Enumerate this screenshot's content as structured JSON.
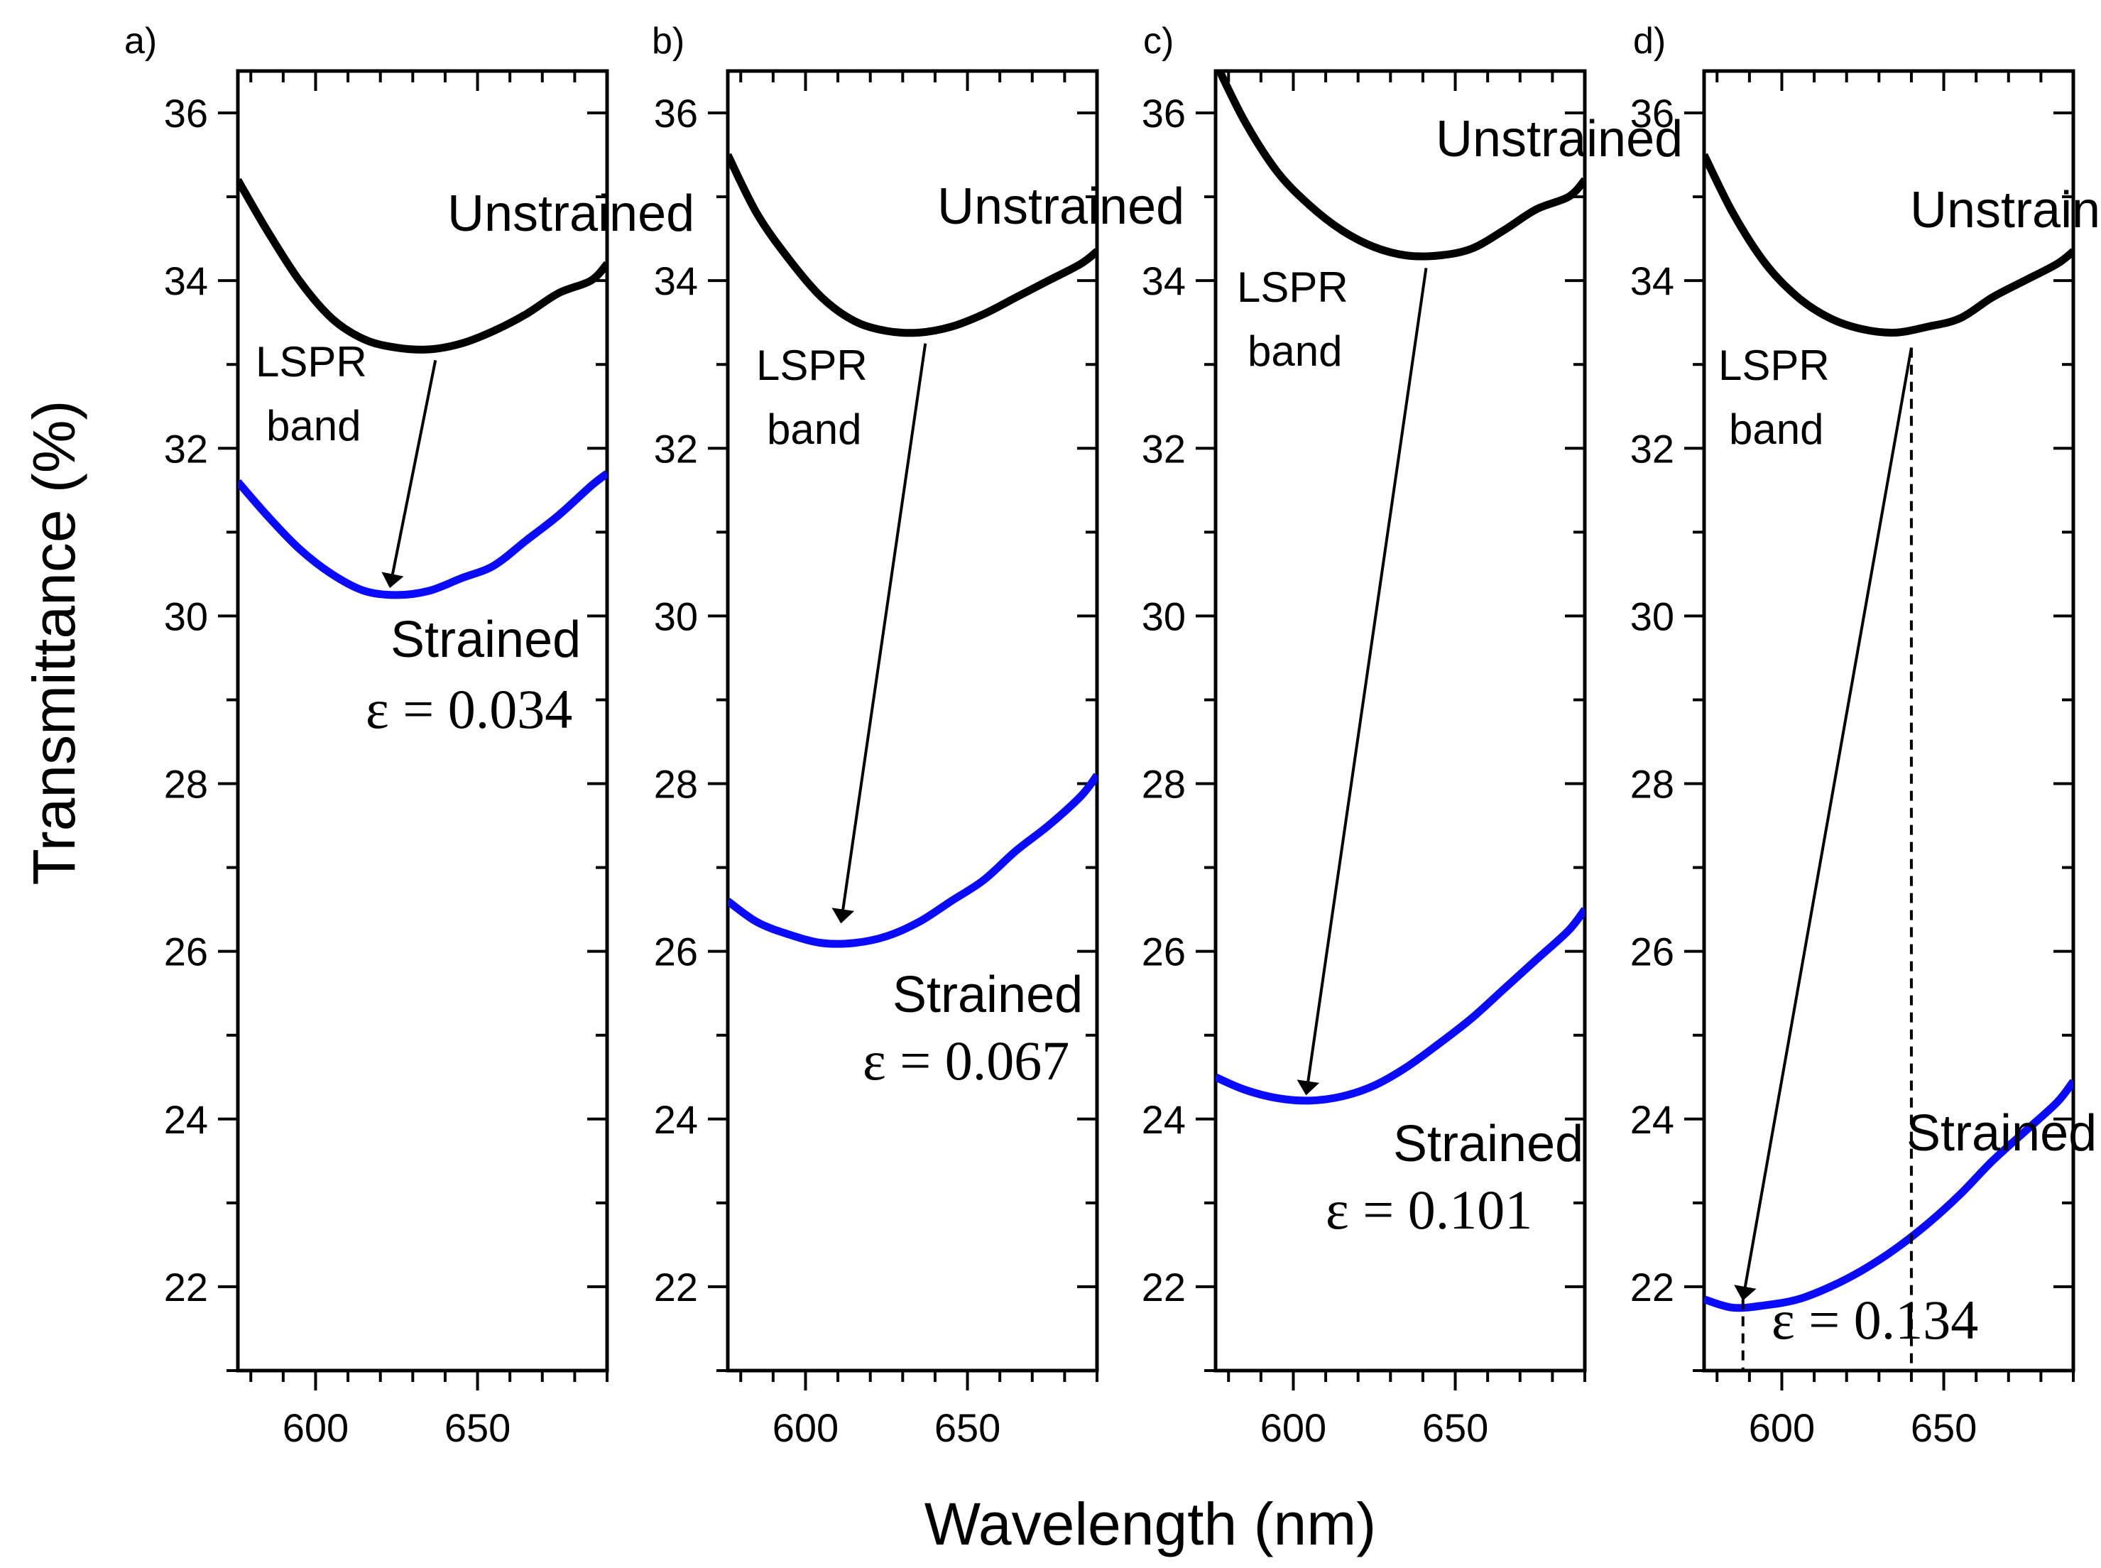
{
  "figure": {
    "ylabel": "Transmittance (%)",
    "xlabel": "Wavelength (nm)",
    "y_ticks": [
      22,
      24,
      26,
      28,
      30,
      32,
      34,
      36
    ],
    "x_ticks": [
      600,
      650
    ],
    "xlim": [
      576,
      690
    ],
    "ylim": [
      21,
      36.5
    ],
    "colors": {
      "unstrained": "#000000",
      "strained": "#0a0aff",
      "axes": "#000000"
    }
  },
  "chart_data": [
    {
      "type": "line",
      "panel_label": "a)",
      "xlim": [
        576,
        690
      ],
      "ylim": [
        21,
        36.5
      ],
      "series": [
        {
          "name": "Unstrained",
          "x": [
            576,
            585,
            595,
            605,
            615,
            625,
            635,
            645,
            655,
            665,
            675,
            685,
            690
          ],
          "values": [
            35.2,
            34.6,
            34.0,
            33.55,
            33.3,
            33.2,
            33.18,
            33.25,
            33.4,
            33.6,
            33.85,
            34.0,
            34.2
          ]
        },
        {
          "name": "Strained",
          "x": [
            576,
            585,
            595,
            605,
            615,
            625,
            635,
            645,
            655,
            665,
            675,
            685,
            690
          ],
          "values": [
            31.6,
            31.2,
            30.8,
            30.5,
            30.3,
            30.25,
            30.3,
            30.45,
            30.6,
            30.9,
            31.2,
            31.55,
            31.7
          ]
        }
      ],
      "annotations": {
        "unstrained_label": "Unstrained",
        "lspr_line1": "LSPR",
        "lspr_line2": "band",
        "strained_label": "Strained",
        "strain": "ε = 0.034"
      },
      "arrow": {
        "from": [
          637,
          33.05
        ],
        "to": [
          623,
          30.35
        ]
      }
    },
    {
      "type": "line",
      "panel_label": "b)",
      "xlim": [
        576,
        690
      ],
      "ylim": [
        21,
        36.5
      ],
      "series": [
        {
          "name": "Unstrained",
          "x": [
            576,
            585,
            595,
            605,
            615,
            625,
            635,
            645,
            655,
            665,
            675,
            685,
            690
          ],
          "values": [
            35.5,
            34.8,
            34.25,
            33.8,
            33.52,
            33.4,
            33.38,
            33.45,
            33.6,
            33.8,
            34.0,
            34.2,
            34.35
          ]
        },
        {
          "name": "Strained",
          "x": [
            576,
            585,
            595,
            605,
            615,
            625,
            635,
            645,
            655,
            665,
            675,
            685,
            690
          ],
          "values": [
            26.6,
            26.35,
            26.2,
            26.1,
            26.1,
            26.18,
            26.35,
            26.6,
            26.85,
            27.2,
            27.5,
            27.85,
            28.1
          ]
        }
      ],
      "annotations": {
        "unstrained_label": "Unstrained",
        "lspr_line1": "LSPR",
        "lspr_line2": "band",
        "strained_label": "Strained",
        "strain": "ε = 0.067"
      },
      "arrow": {
        "from": [
          637,
          33.25
        ],
        "to": [
          611,
          26.35
        ]
      }
    },
    {
      "type": "line",
      "panel_label": "c)",
      "xlim": [
        576,
        690
      ],
      "ylim": [
        21,
        36.5
      ],
      "series": [
        {
          "name": "Unstrained",
          "x": [
            576,
            585,
            595,
            605,
            615,
            625,
            635,
            645,
            655,
            665,
            675,
            685,
            690
          ],
          "values": [
            36.6,
            35.9,
            35.3,
            34.9,
            34.6,
            34.4,
            34.3,
            34.3,
            34.38,
            34.6,
            34.85,
            35.0,
            35.2
          ]
        },
        {
          "name": "Strained",
          "x": [
            576,
            585,
            595,
            605,
            615,
            625,
            635,
            645,
            655,
            665,
            675,
            685,
            690
          ],
          "values": [
            24.5,
            24.35,
            24.25,
            24.22,
            24.27,
            24.4,
            24.62,
            24.9,
            25.2,
            25.55,
            25.9,
            26.25,
            26.5
          ]
        }
      ],
      "annotations": {
        "unstrained_label": "Unstrained",
        "lspr_line1": "LSPR",
        "lspr_line2": "band",
        "strained_label": "Strained",
        "strain": "ε = 0.101"
      },
      "arrow": {
        "from": [
          641,
          34.15
        ],
        "to": [
          604,
          24.3
        ]
      }
    },
    {
      "type": "line",
      "panel_label": "d)",
      "xlim": [
        576,
        690
      ],
      "ylim": [
        21,
        36.5
      ],
      "series": [
        {
          "name": "Unstrained",
          "x": [
            576,
            585,
            595,
            605,
            615,
            625,
            635,
            645,
            655,
            665,
            675,
            685,
            690
          ],
          "values": [
            35.5,
            34.8,
            34.2,
            33.8,
            33.55,
            33.42,
            33.38,
            33.45,
            33.55,
            33.8,
            34.0,
            34.2,
            34.35
          ]
        },
        {
          "name": "Strained",
          "x": [
            576,
            585,
            595,
            605,
            615,
            625,
            635,
            645,
            655,
            665,
            675,
            685,
            690
          ],
          "values": [
            21.85,
            21.75,
            21.78,
            21.85,
            22.0,
            22.2,
            22.45,
            22.75,
            23.1,
            23.5,
            23.85,
            24.2,
            24.45
          ]
        }
      ],
      "annotations": {
        "unstrained_label": "Unstrained",
        "lspr_line1": "LSPR",
        "lspr_line2": "band",
        "strained_label": "Strained",
        "strain": "ε = 0.134"
      },
      "arrow": {
        "from": [
          640,
          33.2
        ],
        "to": [
          588,
          21.85
        ]
      },
      "guides": [
        640,
        588
      ]
    }
  ]
}
